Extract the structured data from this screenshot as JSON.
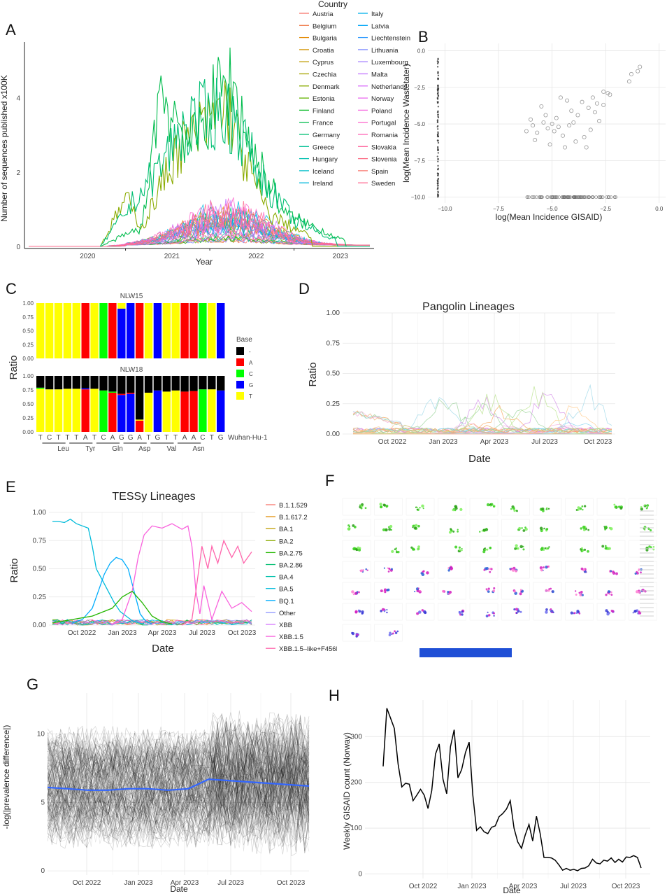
{
  "panels": {
    "A": {
      "letter": "A",
      "xlabel": "Year",
      "ylabel": "Number of sequences published  x100K",
      "legend_title": "Country"
    },
    "B": {
      "letter": "B",
      "xlabel": "log(Mean Incidence GISAID)",
      "ylabel": "log(Mean Incidence Wastetater)"
    },
    "C": {
      "letter": "C",
      "ylabel": "Ratio",
      "facet_top": "NLW15",
      "facet_bottom": "NLW18",
      "legend_title": "Base",
      "reference": "Wuhan-Hu-1"
    },
    "D": {
      "letter": "D",
      "title": "Pangolin Lineages",
      "xlabel": "Date",
      "ylabel": "Ratio"
    },
    "E": {
      "letter": "E",
      "title": "TESSy Lineages",
      "xlabel": "Date",
      "ylabel": "Ratio"
    },
    "F": {
      "letter": "F"
    },
    "G": {
      "letter": "G",
      "xlabel": "Date",
      "ylabel": "-log(|prevalence difference|)"
    },
    "H": {
      "letter": "H",
      "xlabel": "Date",
      "ylabel": "Weekly GISAID count (Norway)"
    }
  },
  "chart_data": [
    {
      "id": "A",
      "type": "line",
      "x_ticks": [
        "2020",
        "2021",
        "2022",
        "2023"
      ],
      "y_ticks": [
        0,
        2,
        4
      ],
      "ylim": [
        0,
        5.5
      ],
      "legend": [
        "Austria",
        "Belgium",
        "Bulgaria",
        "Croatia",
        "Cyprus",
        "Czechia",
        "Denmark",
        "Estonia",
        "Finland",
        "France",
        "Germany",
        "Greece",
        "Hungary",
        "Iceland",
        "Ireland",
        "Italy",
        "Latvia",
        "Liechtenstein",
        "Lithuania",
        "Luxembourg",
        "Malta",
        "Netherlands",
        "Norway",
        "Poland",
        "Portugal",
        "Romania",
        "Slovakia",
        "Slovenia",
        "Spain",
        "Sweden"
      ],
      "legend_colors": [
        "#F8766D",
        "#F07E4E",
        "#E38900",
        "#D29200",
        "#BE9C00",
        "#A6A400",
        "#8AAB00",
        "#62B200",
        "#00B81F",
        "#00BC4D",
        "#00BF73",
        "#00C094",
        "#00C0B0",
        "#00BDC8",
        "#00B8DC",
        "#00B0EC",
        "#00A5F8",
        "#2D98FF",
        "#7E8BFF",
        "#A57FFF",
        "#C377FF",
        "#DA6FFB",
        "#EA6AEF",
        "#F667DF",
        "#FD66CC",
        "#FF65B6",
        "#FF679E",
        "#FC6C85",
        "#F8766D",
        "#FF6C91"
      ],
      "highlight_series": [
        {
          "name": "Denmark",
          "peaks": [
            [
              2020.8,
              1.5
            ],
            [
              2021.0,
              0.6
            ],
            [
              2021.4,
              3.0
            ],
            [
              2021.75,
              3.8
            ],
            [
              2022.0,
              4.5
            ],
            [
              2022.2,
              2.8
            ],
            [
              2022.5,
              1.0
            ],
            [
              2023.0,
              0.3
            ]
          ]
        },
        {
          "name": "France",
          "peaks": [
            [
              2021.0,
              0.6
            ],
            [
              2021.2,
              5.0
            ],
            [
              2021.6,
              3.2
            ],
            [
              2021.9,
              4.8
            ],
            [
              2022.05,
              5.3
            ],
            [
              2022.3,
              3.0
            ],
            [
              2022.7,
              1.0
            ],
            [
              2023.4,
              0.2
            ]
          ]
        },
        {
          "name": "Germany",
          "peaks": [
            [
              2021.2,
              2.5
            ],
            [
              2021.5,
              3.8
            ],
            [
              2021.9,
              4.3
            ],
            [
              2022.1,
              4.0
            ],
            [
              2022.4,
              2.2
            ],
            [
              2022.8,
              0.8
            ],
            [
              2023.3,
              0.2
            ]
          ]
        }
      ]
    },
    {
      "id": "B",
      "type": "scatter",
      "x_ticks": [
        -10.0,
        -7.5,
        -5.0,
        -2.5,
        0.0
      ],
      "y_ticks": [
        0.0,
        -2.5,
        -5.0,
        -7.5,
        -10.0
      ],
      "xlim": [
        -10.8,
        0.3
      ],
      "ylim": [
        -10.4,
        0.5
      ],
      "points": [
        [
          -0.9,
          -1.1
        ],
        [
          -1.0,
          -1.4
        ],
        [
          -1.3,
          -1.6
        ],
        [
          -1.4,
          -2.1
        ],
        [
          -2.4,
          -2.9
        ],
        [
          -2.6,
          -2.8
        ],
        [
          -2.9,
          -3.6
        ],
        [
          -3.1,
          -3.2
        ],
        [
          -3.3,
          -3.9
        ],
        [
          -3.6,
          -3.5
        ],
        [
          -3.8,
          -4.4
        ],
        [
          -4.1,
          -4.1
        ],
        [
          -4.3,
          -3.4
        ],
        [
          -4.6,
          -3.2
        ],
        [
          -4.8,
          -4.6
        ],
        [
          -5.0,
          -5.0
        ],
        [
          -5.2,
          -5.3
        ],
        [
          -5.4,
          -4.9
        ],
        [
          -5.5,
          -3.8
        ],
        [
          -5.7,
          -5.6
        ],
        [
          -5.8,
          -6.1
        ],
        [
          -6.0,
          -4.7
        ],
        [
          -6.2,
          -5.5
        ],
        [
          -4.5,
          -5.8
        ],
        [
          -4.2,
          -5.1
        ],
        [
          -3.9,
          -6.2
        ],
        [
          -3.5,
          -5.9
        ],
        [
          -3.2,
          -5.4
        ],
        [
          -2.8,
          -4.8
        ],
        [
          -5.1,
          -6.4
        ],
        [
          -4.9,
          -5.5
        ],
        [
          -3.0,
          -4.2
        ],
        [
          -2.6,
          -3.7
        ],
        [
          -4.4,
          -6.6
        ],
        [
          -5.9,
          -5.1
        ],
        [
          -4.0,
          -4.9
        ],
        [
          -3.4,
          -6.6
        ],
        [
          -2.3,
          -3.0
        ],
        [
          -5.3,
          -4.4
        ],
        [
          -4.7,
          -5.2
        ]
      ]
    },
    {
      "id": "C",
      "type": "bar",
      "categories": [
        "T",
        "C",
        "T",
        "T",
        "T",
        "A",
        "T",
        "C",
        "A",
        "G",
        "G",
        "A",
        "T",
        "G",
        "T",
        "T",
        "A",
        "A",
        "C",
        "T",
        "G"
      ],
      "codons": [
        "Leu",
        "Tyr",
        "Gln",
        "Asp",
        "Val",
        "Asn"
      ],
      "bases": [
        "-",
        "A",
        "C",
        "G",
        "T"
      ],
      "base_colors": [
        "#000000",
        "#ff0000",
        "#00ff00",
        "#0000ff",
        "#ffff00"
      ],
      "y_ticks": [
        0.0,
        0.25,
        0.5,
        0.75,
        1.0
      ],
      "NLW15": [
        [
          "T",
          1
        ],
        [
          "T",
          1
        ],
        [
          "T",
          1
        ],
        [
          "T",
          1
        ],
        [
          "T",
          1
        ],
        [
          "A",
          1
        ],
        [
          "T",
          1
        ],
        [
          "C",
          1
        ],
        [
          "A",
          1
        ],
        [
          "G",
          0.9,
          "T",
          0.1
        ],
        [
          "G",
          1
        ],
        [
          "A",
          1
        ],
        [
          "T",
          1
        ],
        [
          "G",
          1
        ],
        [
          "T",
          1
        ],
        [
          "T",
          1
        ],
        [
          "A",
          1
        ],
        [
          "A",
          1
        ],
        [
          "C",
          1
        ],
        [
          "T",
          1
        ],
        [
          "G",
          1
        ]
      ],
      "NLW18": [
        [
          "T",
          0.77,
          "C",
          0.02
        ],
        [
          "T",
          0.76
        ],
        [
          "T",
          0.76
        ],
        [
          "T",
          0.77
        ],
        [
          "T",
          0.77
        ],
        [
          "A",
          0.76,
          "G",
          0.02
        ],
        [
          "T",
          0.77
        ],
        [
          "C",
          0.74
        ],
        [
          "A",
          0.7,
          "C",
          0.02
        ],
        [
          "G",
          0.66,
          "A",
          0.02
        ],
        [
          "G",
          0.68,
          "A",
          0.02
        ],
        [
          "A",
          0.2,
          "T",
          0.02
        ],
        [
          "T",
          0.7
        ],
        [
          "G",
          0.74
        ],
        [
          "T",
          0.72
        ],
        [
          "T",
          0.74
        ],
        [
          "A",
          0.72
        ],
        [
          "A",
          0.73
        ],
        [
          "C",
          0.76
        ],
        [
          "T",
          0.76
        ],
        [
          "G",
          0.74
        ]
      ]
    },
    {
      "id": "D",
      "type": "line",
      "x_ticks": [
        "Oct 2022",
        "Jan 2023",
        "Apr 2023",
        "Jul 2023",
        "Oct 2023"
      ],
      "y_ticks": [
        0.0,
        0.25,
        0.5,
        0.75,
        1.0
      ],
      "ylim": [
        0,
        1.0
      ],
      "series_notes": "many faint lineage series; peaks below 0.45"
    },
    {
      "id": "E",
      "type": "line",
      "x_ticks": [
        "Oct 2022",
        "Jan 2023",
        "Apr 2023",
        "Jul 2023",
        "Oct 2023"
      ],
      "y_ticks": [
        0.0,
        0.25,
        0.5,
        0.75,
        1.0
      ],
      "ylim": [
        0,
        1.0
      ],
      "legend": [
        "B.1.1.529",
        "B.1.617.2",
        "BA.1",
        "BA.2",
        "BA.2.75",
        "BA.2.86",
        "BA.4",
        "BA.5",
        "BQ.1",
        "Other",
        "XBB",
        "XBB.1.5",
        "XBB.1.5–like+F456L"
      ],
      "legend_colors": [
        "#F8766D",
        "#E18A00",
        "#BE9C00",
        "#8CAB00",
        "#24B700",
        "#00BE70",
        "#00C1AB",
        "#00BBDA",
        "#00ACFC",
        "#8B93FF",
        "#D575FE",
        "#F962DD",
        "#FF65AC"
      ],
      "series": [
        {
          "name": "BA.5",
          "color": "#00BBDA",
          "x": [
            0,
            0.03,
            0.06,
            0.09,
            0.12,
            0.15,
            0.18,
            0.2,
            0.22,
            0.25,
            0.28,
            0.31,
            0.34,
            0.37,
            0.4,
            0.43,
            0.46
          ],
          "y": [
            0.92,
            0.92,
            0.91,
            0.94,
            0.9,
            0.88,
            0.86,
            0.7,
            0.5,
            0.4,
            0.3,
            0.2,
            0.12,
            0.08,
            0.04,
            0.02,
            0.01
          ]
        },
        {
          "name": "BQ.1",
          "color": "#00ACFC",
          "x": [
            0.1,
            0.15,
            0.2,
            0.23,
            0.26,
            0.29,
            0.32,
            0.35,
            0.38,
            0.41,
            0.44,
            0.47,
            0.5
          ],
          "y": [
            0.02,
            0.05,
            0.15,
            0.3,
            0.45,
            0.55,
            0.6,
            0.58,
            0.5,
            0.3,
            0.1,
            0.03,
            0.01
          ]
        },
        {
          "name": "XBB.1.5",
          "color": "#F962DD",
          "x": [
            0.3,
            0.35,
            0.4,
            0.43,
            0.46,
            0.5,
            0.55,
            0.6,
            0.65,
            0.68,
            0.7,
            0.72,
            0.74,
            0.76,
            0.8,
            0.85,
            0.9,
            0.95,
            1.0
          ],
          "y": [
            0.01,
            0.05,
            0.3,
            0.6,
            0.8,
            0.88,
            0.86,
            0.9,
            0.85,
            0.88,
            0.7,
            0.3,
            0.1,
            0.35,
            0.05,
            0.3,
            0.15,
            0.2,
            0.12
          ]
        },
        {
          "name": "XBB.1.5–like+F456L",
          "color": "#FF65AC",
          "x": [
            0.65,
            0.7,
            0.72,
            0.75,
            0.78,
            0.8,
            0.83,
            0.86,
            0.9,
            0.93,
            0.96,
            1.0
          ],
          "y": [
            0.0,
            0.05,
            0.3,
            0.7,
            0.5,
            0.7,
            0.55,
            0.75,
            0.6,
            0.7,
            0.55,
            0.65
          ]
        },
        {
          "name": "BA.2.75",
          "color": "#24B700",
          "x": [
            0,
            0.1,
            0.2,
            0.3,
            0.35,
            0.4,
            0.45,
            0.5,
            0.55,
            0.6
          ],
          "y": [
            0.02,
            0.05,
            0.08,
            0.15,
            0.25,
            0.3,
            0.2,
            0.08,
            0.03,
            0.01
          ]
        }
      ]
    },
    {
      "id": "G",
      "type": "line",
      "x_ticks": [
        "Oct 2022",
        "Jan 2023",
        "Apr 2023",
        "Jul 2023",
        "Oct 2023"
      ],
      "y_ticks": [
        0,
        5,
        10
      ],
      "ylim": [
        -0.3,
        13
      ],
      "trend": [
        6.1,
        6.0,
        5.9,
        5.9,
        6.0,
        6.0,
        5.9,
        6.0,
        6.7,
        6.6,
        6.5,
        6.4,
        6.3,
        6.2
      ]
    },
    {
      "id": "H",
      "type": "line",
      "x_ticks": [
        "Oct 2022",
        "Jan 2023",
        "Apr 2023",
        "Jul 2023",
        "Oct 2023"
      ],
      "y_ticks": [
        0,
        100,
        200,
        300
      ],
      "ylim": [
        -10,
        380
      ],
      "values": [
        235,
        362,
        340,
        318,
        240,
        190,
        198,
        196,
        160,
        172,
        185,
        172,
        143,
        182,
        262,
        284,
        207,
        175,
        278,
        315,
        210,
        228,
        265,
        288,
        172,
        95,
        103,
        92,
        88,
        102,
        105,
        125,
        132,
        142,
        160,
        100,
        70,
        56,
        85,
        108,
        72,
        126,
        88,
        36,
        36,
        35,
        30,
        20,
        8,
        12,
        8,
        10,
        7,
        12,
        13,
        18,
        32,
        24,
        22,
        30,
        28,
        35,
        25,
        32,
        26,
        37,
        36,
        40,
        36,
        13
      ]
    }
  ]
}
